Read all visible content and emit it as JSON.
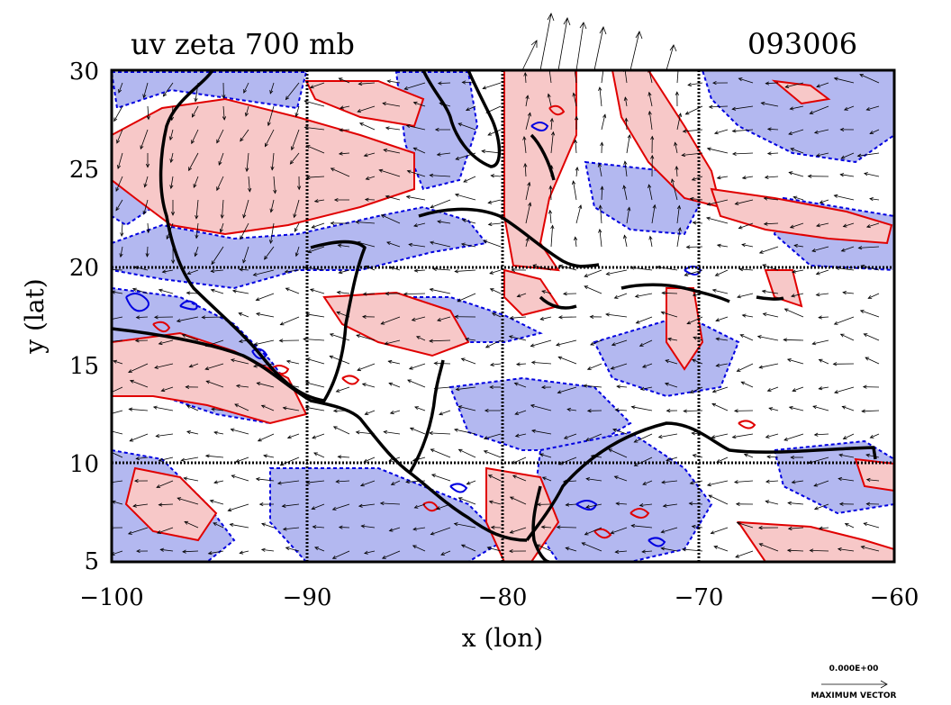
{
  "figure": {
    "title_left": "uv zeta 700 mb",
    "title_right": "093006",
    "x_axis_label": "x (lon)",
    "y_axis_label": "y (lat)",
    "x_ticks": [
      "−100",
      "−90",
      "−80",
      "−70",
      "−60"
    ],
    "y_ticks": [
      "30",
      "25",
      "20",
      "15",
      "10",
      "5"
    ],
    "reference_vector_value": "0.000E+00",
    "reference_vector_label": "MAXIMUM VECTOR"
  },
  "map": {
    "lon_range": [
      -100,
      -60
    ],
    "lat_range": [
      5,
      30
    ],
    "grid_lons": [
      -90,
      -80,
      -70
    ],
    "grid_lats": [
      10,
      20
    ],
    "colors": {
      "positive_contour": "#e00000",
      "positive_fill": "#f7c8c8",
      "negative_contour": "#0000e0",
      "negative_fill": "#b3b8f0",
      "coastline": "#000000",
      "vector": "#000000"
    }
  }
}
